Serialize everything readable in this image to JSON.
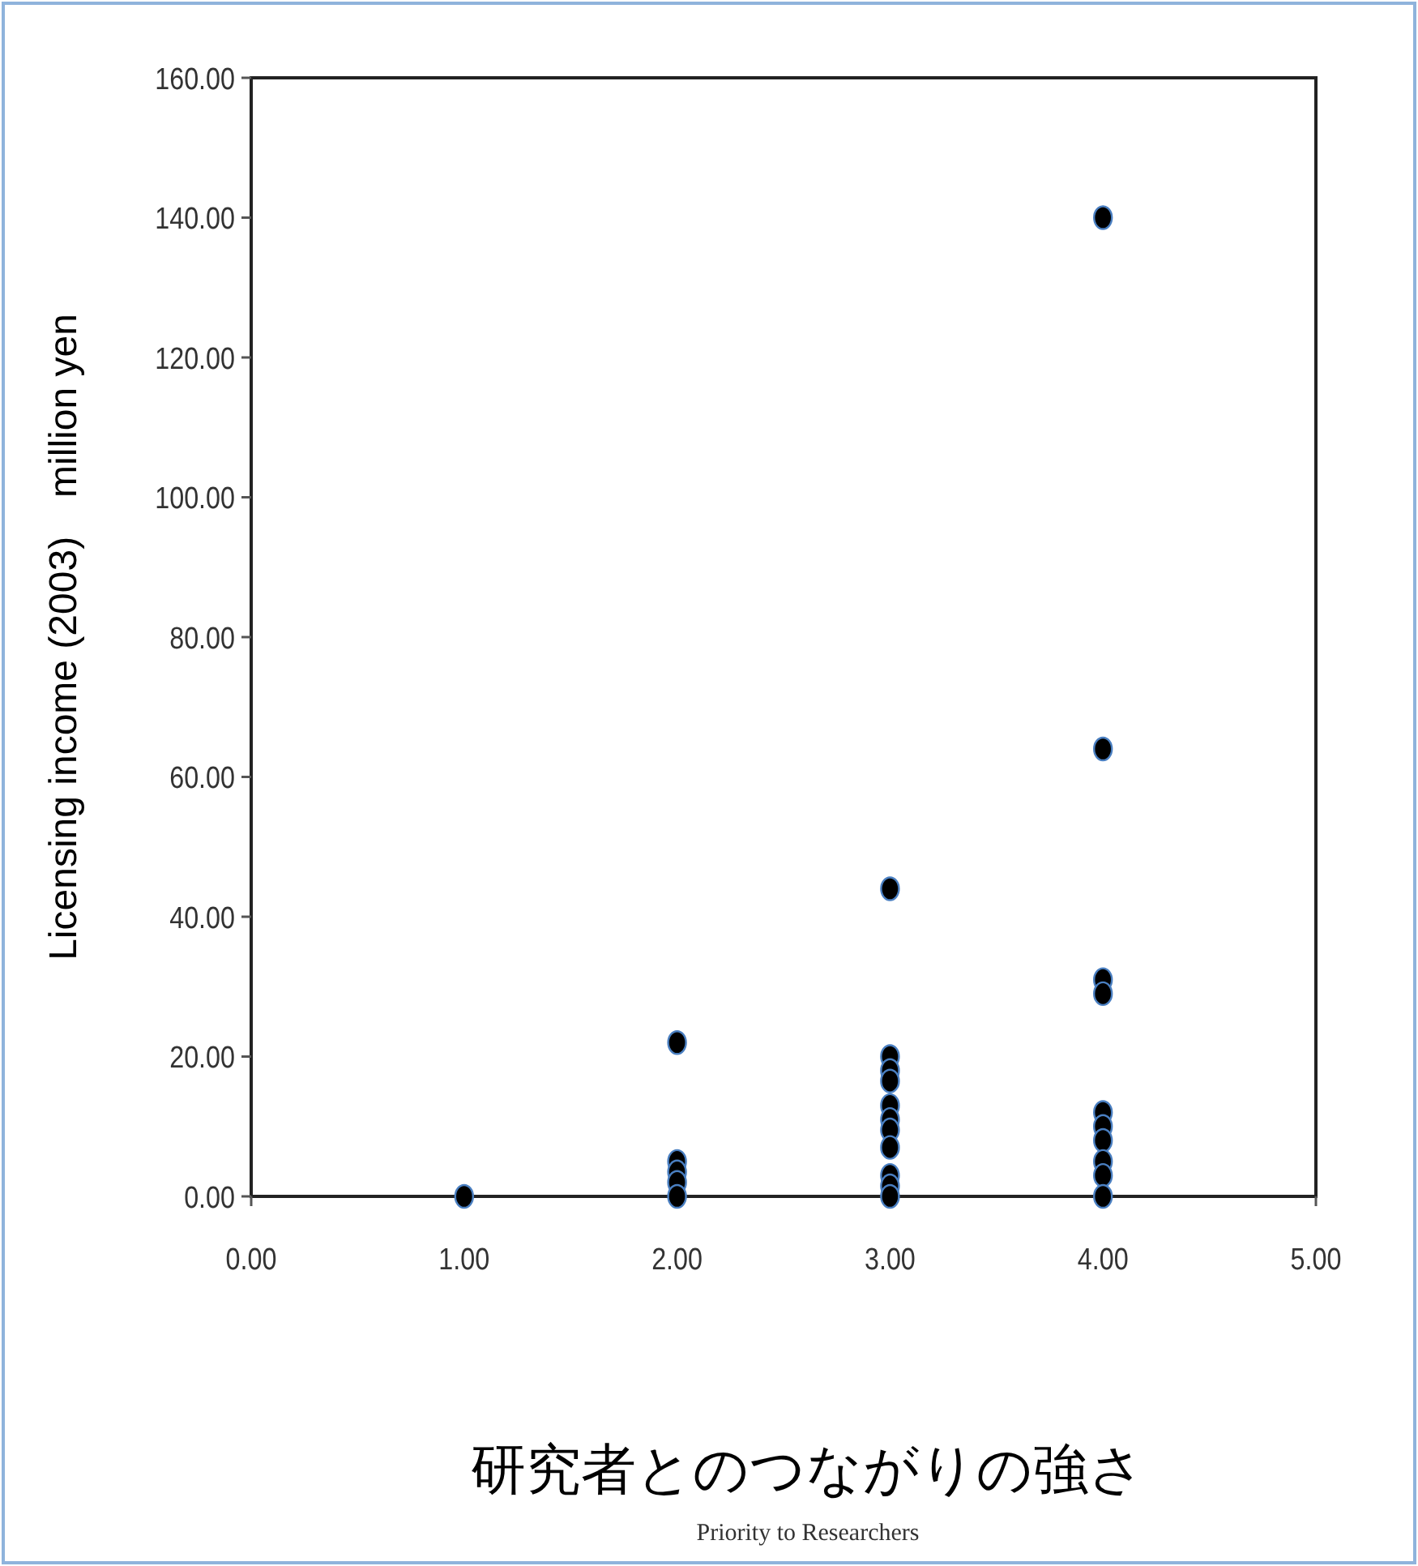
{
  "chart_data": {
    "type": "scatter",
    "xlabel": "研究者とのつながりの強さ",
    "ylabel": "Licensing income (2003)　million yen",
    "annotations": [
      "Priority to Researchers"
    ],
    "series": [
      {
        "color": "#000000",
        "x": [
          1,
          2,
          2,
          2,
          2,
          2,
          3,
          3,
          3,
          3,
          3,
          3,
          3,
          3,
          3,
          3,
          3,
          4,
          4,
          4,
          4,
          4,
          4,
          4,
          4,
          4,
          4
        ],
        "values": [
          0,
          22,
          5,
          3.5,
          2,
          0,
          44,
          20,
          18,
          16.5,
          13,
          11,
          9.5,
          7,
          3,
          1.5,
          0,
          140,
          64,
          31,
          29,
          12,
          10,
          8,
          5,
          3,
          0
        ]
      }
    ],
    "marker": "circle",
    "grid": false,
    "xlim": [
      0,
      5
    ],
    "xticks": [
      {
        "value": 0,
        "label": "0.00"
      },
      {
        "value": 1,
        "label": "1.00"
      },
      {
        "value": 2,
        "label": "2.00"
      },
      {
        "value": 3,
        "label": "3.00"
      },
      {
        "value": 4,
        "label": "4.00"
      },
      {
        "value": 5,
        "label": "5.00"
      }
    ],
    "ylim": [
      0,
      160
    ],
    "yticks": [
      {
        "value": 0,
        "label": "0.00"
      },
      {
        "value": 20,
        "label": "20.00"
      },
      {
        "value": 40,
        "label": "40.00"
      },
      {
        "value": 60,
        "label": "60.00"
      },
      {
        "value": 80,
        "label": "80.00"
      },
      {
        "value": 100,
        "label": "100.00"
      },
      {
        "value": 120,
        "label": "120.00"
      },
      {
        "value": 140,
        "label": "140.00"
      },
      {
        "value": 160,
        "label": "160.00"
      }
    ]
  }
}
